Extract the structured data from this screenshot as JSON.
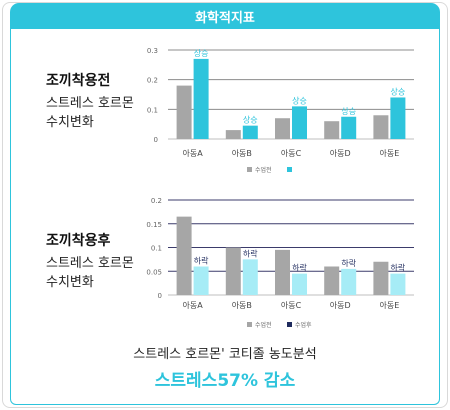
{
  "header": {
    "title": "화학적지표"
  },
  "panel_top": {
    "title": "조끼착용전",
    "subtitle_line1": "스트레스 호르몬",
    "subtitle_line2": "수치변화"
  },
  "panel_bottom": {
    "title": "조끼착용후",
    "subtitle_line1": "스트레스 호르몬",
    "subtitle_line2": "수치변화"
  },
  "footer": {
    "line1": "스트레스 호르몬' 코티졸 농도분석",
    "line2": "스트레스57% 감소"
  },
  "colors": {
    "accent": "#2ec4dc",
    "gray": "#a6a6a6",
    "light_cyan": "#a6ecf6",
    "navy": "#1f2b5e"
  },
  "chart_data": [
    {
      "type": "bar",
      "categories": [
        "아동A",
        "아동B",
        "아동C",
        "아동D",
        "아동E"
      ],
      "ylim": [
        0,
        0.3
      ],
      "yticks": [
        "0",
        "0.1",
        "0.2",
        "0.3"
      ],
      "series": [
        {
          "name": "수업전",
          "values": [
            0.18,
            0.03,
            0.07,
            0.06,
            0.08
          ],
          "color": "#a6a6a6"
        },
        {
          "name": "",
          "values": [
            0.27,
            0.045,
            0.11,
            0.075,
            0.14
          ],
          "color": "#2ec4dc"
        }
      ],
      "annotations": [
        "상승",
        "상승",
        "상승",
        "상승",
        "상승"
      ]
    },
    {
      "type": "bar",
      "categories": [
        "아동A",
        "아동B",
        "아동C",
        "아동D",
        "아동E"
      ],
      "ylim": [
        0,
        0.2
      ],
      "yticks": [
        "0",
        "0.05",
        "0.1",
        "0.15",
        "0.2"
      ],
      "series": [
        {
          "name": "수업전",
          "values": [
            0.165,
            0.1,
            0.095,
            0.06,
            0.07
          ],
          "color": "#a6a6a6"
        },
        {
          "name": "수업후",
          "values": [
            0.06,
            0.075,
            0.045,
            0.055,
            0.045
          ],
          "color": "#a6ecf6",
          "legend_color": "#1f2b5e"
        }
      ],
      "annotations": [
        "하락",
        "하락",
        "하락",
        "하락",
        "하락"
      ]
    }
  ]
}
